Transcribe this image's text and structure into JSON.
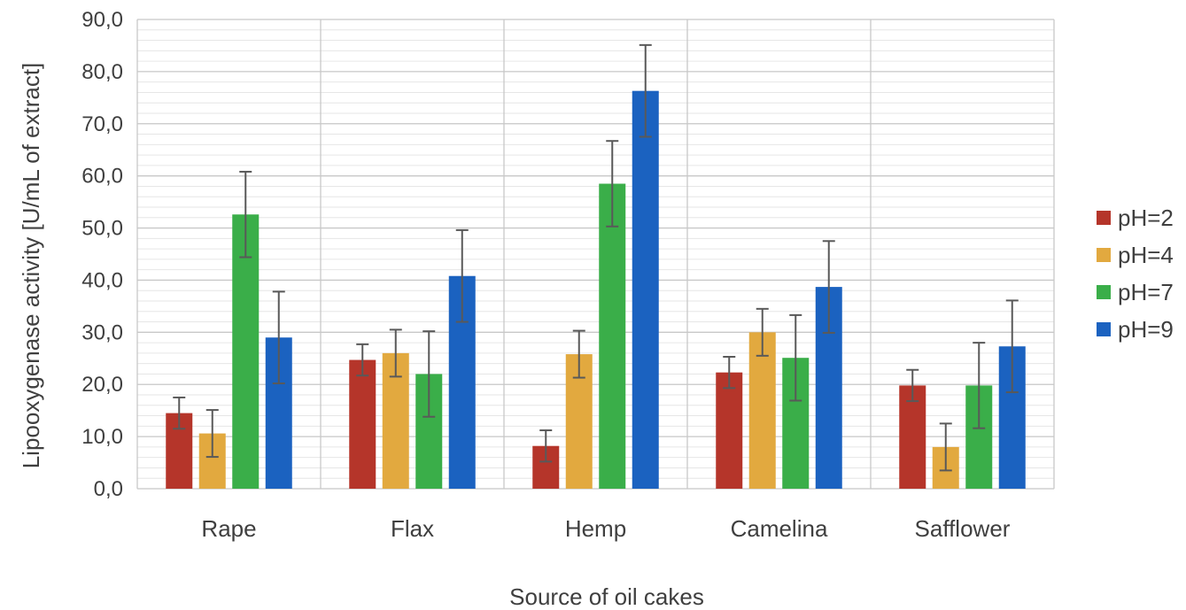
{
  "chart_data": {
    "type": "bar",
    "xlabel": "Source of oil cakes",
    "ylabel": "Lipooxygenase activity [U/mL of extract]",
    "ylim": [
      0,
      90
    ],
    "yticks": [
      0,
      10,
      20,
      30,
      40,
      50,
      60,
      70,
      80,
      90
    ],
    "ytick_labels": [
      "0,0",
      "10,0",
      "20,0",
      "30,0",
      "40,0",
      "50,0",
      "60,0",
      "70,0",
      "80,0",
      "90,0"
    ],
    "categories": [
      "Rape",
      "Flax",
      "Hemp",
      "Camelina",
      "Safflower"
    ],
    "grid": true,
    "legend_position": "right",
    "series": [
      {
        "name": "pH=2",
        "color": "#b5352a",
        "values": [
          14.5,
          24.7,
          8.2,
          22.3,
          19.8
        ],
        "errors": [
          3.0,
          3.0,
          3.0,
          3.0,
          3.0
        ]
      },
      {
        "name": "pH=4",
        "color": "#e2a93f",
        "values": [
          10.6,
          26.0,
          25.8,
          30.0,
          8.0
        ],
        "errors": [
          4.5,
          4.5,
          4.5,
          4.5,
          4.5
        ]
      },
      {
        "name": "pH=7",
        "color": "#3aae49",
        "values": [
          52.6,
          22.0,
          58.5,
          25.1,
          19.8
        ],
        "errors": [
          8.2,
          8.2,
          8.2,
          8.2,
          8.2
        ]
      },
      {
        "name": "pH=9",
        "color": "#1b62c0",
        "values": [
          29.0,
          40.8,
          76.3,
          38.7,
          27.3
        ],
        "errors": [
          8.8,
          8.8,
          8.8,
          8.8,
          8.8
        ]
      }
    ]
  }
}
